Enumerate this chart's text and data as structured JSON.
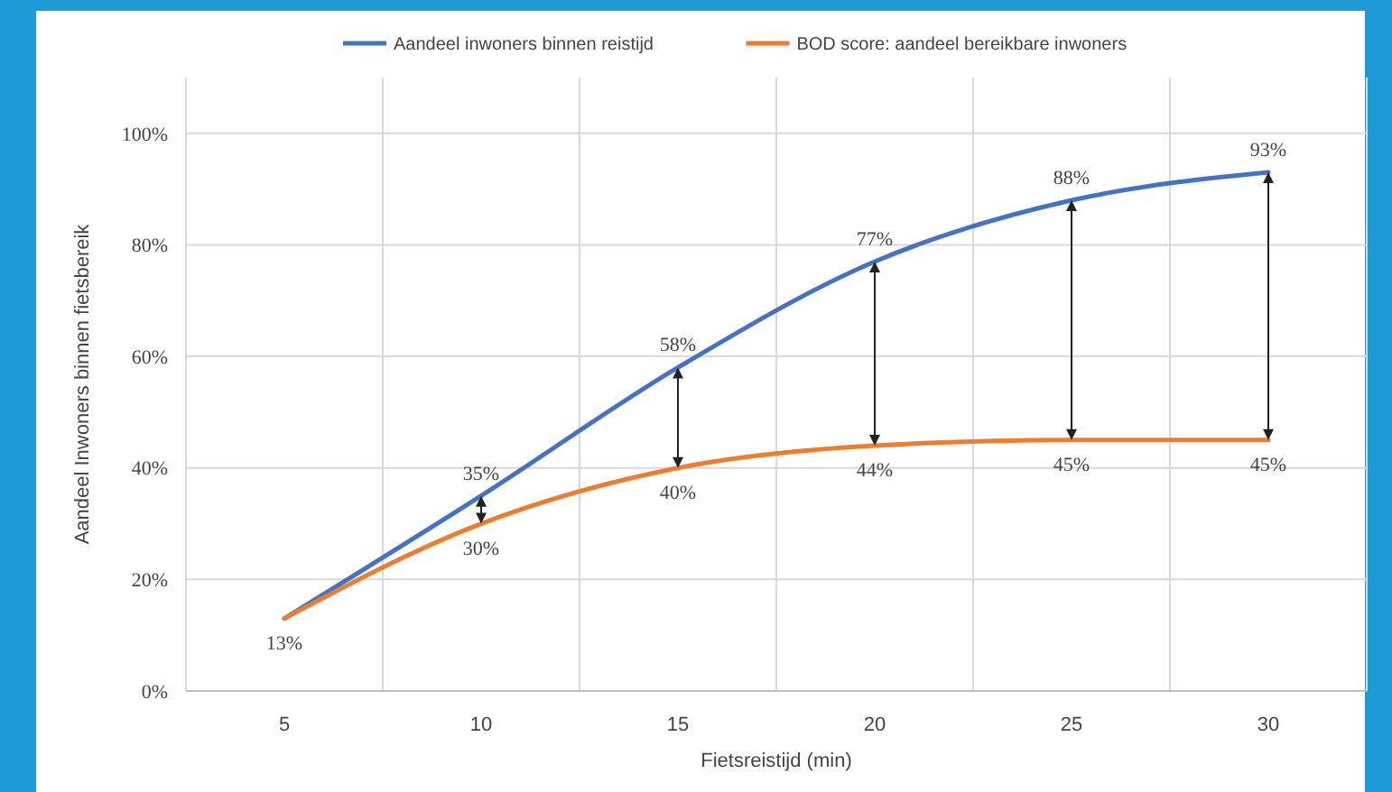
{
  "chart_data": {
    "type": "line",
    "xlabel": "Fietsreistijd (min)",
    "ylabel": "Aandeel  Inwoners  binnen  fietsbereik",
    "categories": [
      "5",
      "10",
      "15",
      "20",
      "25",
      "30"
    ],
    "series": [
      {
        "name": "Aandeel inwoners binnen reistijd",
        "color": "#4472c4",
        "values": [
          13,
          35,
          58,
          77,
          88,
          93
        ],
        "value_labels": [
          null,
          "35%",
          "58%",
          "77%",
          "88%",
          "93%"
        ]
      },
      {
        "name": "BOD score: aandeel bereikbare inwoners",
        "color": "#ed7d31",
        "values": [
          13,
          30,
          40,
          44,
          45,
          45
        ],
        "value_labels": [
          "13%",
          "30%",
          "40%",
          "44%",
          "45%",
          "45%"
        ]
      }
    ],
    "ylim": [
      0,
      110
    ],
    "yticks": [
      {
        "value": 0,
        "label": "0%"
      },
      {
        "value": 20,
        "label": "20%"
      },
      {
        "value": 40,
        "label": "40%"
      },
      {
        "value": 60,
        "label": "60%"
      },
      {
        "value": 80,
        "label": "80%"
      },
      {
        "value": 100,
        "label": "100%"
      }
    ],
    "grid": true,
    "legend": "top",
    "marker": "none",
    "line_style": "solid"
  }
}
